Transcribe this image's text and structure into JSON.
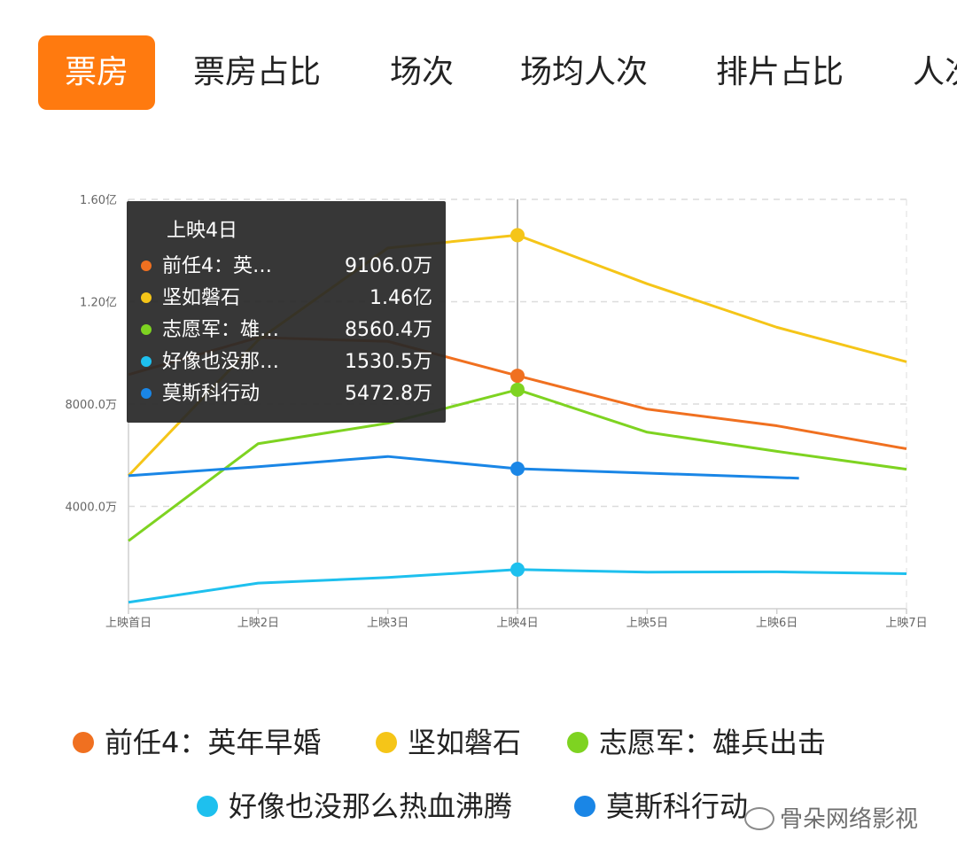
{
  "tabs": [
    {
      "label": "票房",
      "active": true
    },
    {
      "label": "票房占比",
      "active": false
    },
    {
      "label": "场次",
      "active": false
    },
    {
      "label": "场均人次",
      "active": false
    },
    {
      "label": "排片占比",
      "active": false
    },
    {
      "label": "人次",
      "active": false
    }
  ],
  "tooltip": {
    "title": "上映4日",
    "rows": [
      {
        "name": "前任4：英…",
        "value": "9106.0万",
        "color": "#f07020"
      },
      {
        "name": "坚如磐石",
        "value": "1.46亿",
        "color": "#f5c518"
      },
      {
        "name": "志愿军：雄…",
        "value": "8560.4万",
        "color": "#7ed321"
      },
      {
        "name": "好像也没那…",
        "value": "1530.5万",
        "color": "#1ec0ee"
      },
      {
        "name": "莫斯科行动",
        "value": "5472.8万",
        "color": "#1a86e6"
      }
    ]
  },
  "chart_data": {
    "type": "line",
    "categories": [
      "上映首日",
      "上映2日",
      "上映3日",
      "上映4日",
      "上映5日",
      "上映6日",
      "上映7日"
    ],
    "y_tick_labels": [
      "4000.0万",
      "8000.0万",
      "1.20亿",
      "1.60亿"
    ],
    "y_ticks": [
      4000,
      8000,
      12000,
      16000
    ],
    "ylim": [
      0,
      16000
    ],
    "y_unit": "万",
    "grid": true,
    "highlight_index": 3,
    "legend_position": "bottom",
    "series": [
      {
        "name": "前任4：英年早婚",
        "color": "#f07020",
        "values": [
          9150,
          10600,
          10450,
          9106,
          7800,
          7150,
          6250
        ]
      },
      {
        "name": "坚如磐石",
        "color": "#f5c518",
        "values": [
          5200,
          10500,
          14100,
          14600,
          12700,
          11000,
          9650
        ]
      },
      {
        "name": "志愿军：雄兵出击",
        "color": "#7ed321",
        "values": [
          2650,
          6450,
          7250,
          8560.4,
          6900,
          6150,
          5450
        ]
      },
      {
        "name": "好像也没那么热血沸腾",
        "color": "#1ec0ee",
        "values": [
          250,
          1000,
          1220,
          1530.5,
          1430,
          1440,
          1370
        ]
      },
      {
        "name": "莫斯科行动",
        "color": "#1a86e6",
        "values": [
          5200,
          5550,
          5950,
          5472.8,
          5300,
          5100,
          null
        ]
      }
    ]
  },
  "watermark": "骨朵网络影视"
}
